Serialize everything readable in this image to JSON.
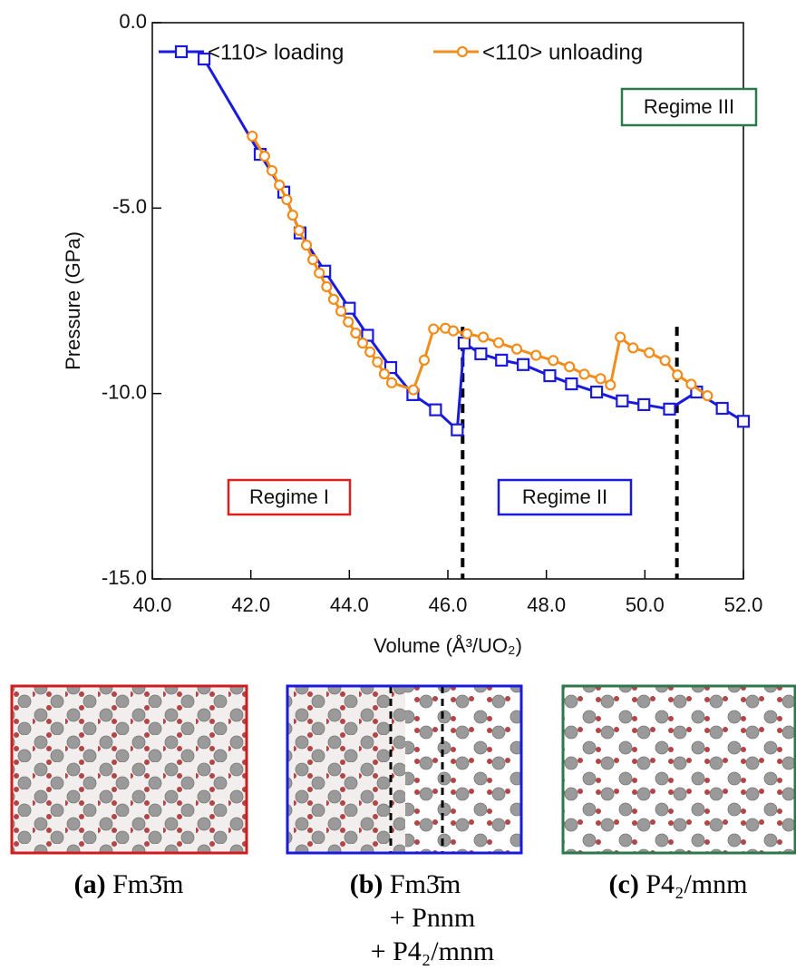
{
  "chart_data": {
    "type": "line",
    "xlabel": "Volume (Å³/UO₂)",
    "ylabel": "Pressure (GPa)",
    "xlim": [
      40,
      52
    ],
    "ylim": [
      -15,
      0
    ],
    "xticks": [
      {
        "value": 40,
        "label": "40.0"
      },
      {
        "value": 42,
        "label": "42.0"
      },
      {
        "value": 44,
        "label": "44.0"
      },
      {
        "value": 46,
        "label": "46.0"
      },
      {
        "value": 48,
        "label": "48.0"
      },
      {
        "value": 50,
        "label": "50.0"
      },
      {
        "value": 52,
        "label": "52.0"
      }
    ],
    "yticks": [
      {
        "value": 0,
        "label": "0.0"
      },
      {
        "value": -5,
        "label": "-5.0"
      },
      {
        "value": -10,
        "label": "-10.0"
      },
      {
        "value": -15,
        "label": "-15.0"
      }
    ],
    "series": [
      {
        "name": "<110> loading",
        "color": "#1a1adc",
        "marker": "square",
        "x": [
          41.05,
          42.19,
          42.67,
          43.0,
          43.5,
          44.0,
          44.37,
          44.84,
          45.29,
          45.75,
          46.19,
          46.33,
          46.67,
          47.09,
          47.53,
          48.07,
          48.51,
          49.02,
          49.54,
          49.98,
          50.5,
          51.05,
          51.57,
          52.0
        ],
        "values": [
          -0.98,
          -3.55,
          -4.57,
          -5.67,
          -6.7,
          -7.7,
          -8.43,
          -9.3,
          -10.03,
          -10.44,
          -10.98,
          -8.64,
          -8.93,
          -9.1,
          -9.22,
          -9.52,
          -9.74,
          -9.96,
          -10.2,
          -10.3,
          -10.42,
          -9.96,
          -10.4,
          -10.75
        ]
      },
      {
        "name": "<110> unloading",
        "color": "#f28c1a",
        "marker": "circle",
        "x": [
          42.03,
          42.28,
          42.43,
          42.58,
          42.73,
          42.85,
          42.98,
          43.13,
          43.26,
          43.39,
          43.54,
          43.68,
          43.83,
          43.98,
          44.13,
          44.27,
          44.42,
          44.57,
          44.71,
          44.86,
          45.3,
          45.52,
          45.71,
          45.95,
          46.11,
          46.39,
          46.72,
          47.03,
          47.4,
          47.79,
          48.14,
          48.47,
          48.77,
          49.1,
          49.3,
          49.5,
          49.76,
          50.09,
          50.41,
          50.66,
          50.94,
          51.27
        ],
        "values": [
          -3.06,
          -3.6,
          -3.99,
          -4.38,
          -4.77,
          -5.19,
          -5.6,
          -6.0,
          -6.39,
          -6.75,
          -7.12,
          -7.46,
          -7.78,
          -8.07,
          -8.37,
          -8.64,
          -8.88,
          -9.15,
          -9.47,
          -9.71,
          -9.9,
          -9.1,
          -8.26,
          -8.24,
          -8.31,
          -8.39,
          -8.48,
          -8.63,
          -8.8,
          -8.97,
          -9.11,
          -9.28,
          -9.48,
          -9.6,
          -9.77,
          -8.48,
          -8.77,
          -8.9,
          -9.11,
          -9.5,
          -9.75,
          -10.06
        ]
      }
    ],
    "vlines": [
      46.3,
      50.65
    ],
    "annotations": [
      {
        "text": "Regime I",
        "color": "#dc2020"
      },
      {
        "text": "Regime II",
        "color": "#1a1adc"
      },
      {
        "text": "Regime III",
        "color": "#2a7a4a"
      }
    ],
    "legend": "upper left"
  },
  "panels": [
    {
      "label": "(a)",
      "formula": [
        "Fm3̄m"
      ],
      "color": "#d01c1c"
    },
    {
      "label": "(b)",
      "formula": [
        "Fm3̄m",
        "+ Pnnm",
        "+ P4₂/mnm"
      ],
      "color": "#1a1adc"
    },
    {
      "label": "(c)",
      "formula": [
        "P4₂/mnm"
      ],
      "color": "#2a7a4a"
    }
  ]
}
